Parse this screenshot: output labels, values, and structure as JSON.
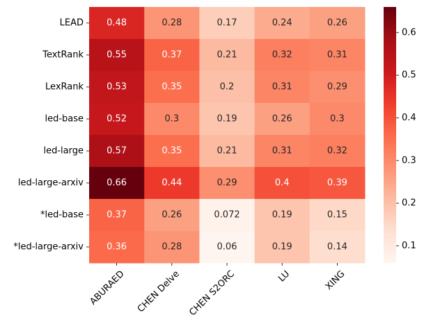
{
  "chart_data": {
    "type": "heatmap",
    "title": "",
    "xlabel": "",
    "ylabel": "",
    "columns": [
      "ABURAED",
      "CHEN Delve",
      "CHEN S2ORC",
      "LU",
      "XING"
    ],
    "rows": [
      "LEAD",
      "TextRank",
      "LexRank",
      "led-base",
      "led-large",
      "led-large-arxiv",
      "*led-base",
      "*led-large-arxiv"
    ],
    "values": [
      [
        0.48,
        0.28,
        0.17,
        0.24,
        0.26
      ],
      [
        0.55,
        0.37,
        0.21,
        0.32,
        0.31
      ],
      [
        0.53,
        0.35,
        0.2,
        0.31,
        0.29
      ],
      [
        0.52,
        0.3,
        0.19,
        0.26,
        0.3
      ],
      [
        0.57,
        0.35,
        0.21,
        0.31,
        0.32
      ],
      [
        0.66,
        0.44,
        0.29,
        0.4,
        0.39
      ],
      [
        0.37,
        0.26,
        0.072,
        0.19,
        0.15
      ],
      [
        0.36,
        0.28,
        0.06,
        0.19,
        0.14
      ]
    ],
    "value_labels": [
      [
        "0.48",
        "0.28",
        "0.17",
        "0.24",
        "0.26"
      ],
      [
        "0.55",
        "0.37",
        "0.21",
        "0.32",
        "0.31"
      ],
      [
        "0.53",
        "0.35",
        "0.2",
        "0.31",
        "0.29"
      ],
      [
        "0.52",
        "0.3",
        "0.19",
        "0.26",
        "0.3"
      ],
      [
        "0.57",
        "0.35",
        "0.21",
        "0.31",
        "0.32"
      ],
      [
        "0.66",
        "0.44",
        "0.29",
        "0.4",
        "0.39"
      ],
      [
        "0.37",
        "0.26",
        "0.072",
        "0.19",
        "0.15"
      ],
      [
        "0.36",
        "0.28",
        "0.06",
        "0.19",
        "0.14"
      ]
    ],
    "colormap": "Reds",
    "vmin": 0.06,
    "vmax": 0.66,
    "colorbar_ticks": [
      0.1,
      0.2,
      0.3,
      0.4,
      0.5,
      0.6
    ],
    "colorbar_tick_labels": [
      "0.1",
      "0.2",
      "0.3",
      "0.4",
      "0.5",
      "0.6"
    ],
    "annotation_colors": {
      "dark_text": "#262626",
      "light_text": "#ffffff"
    }
  }
}
